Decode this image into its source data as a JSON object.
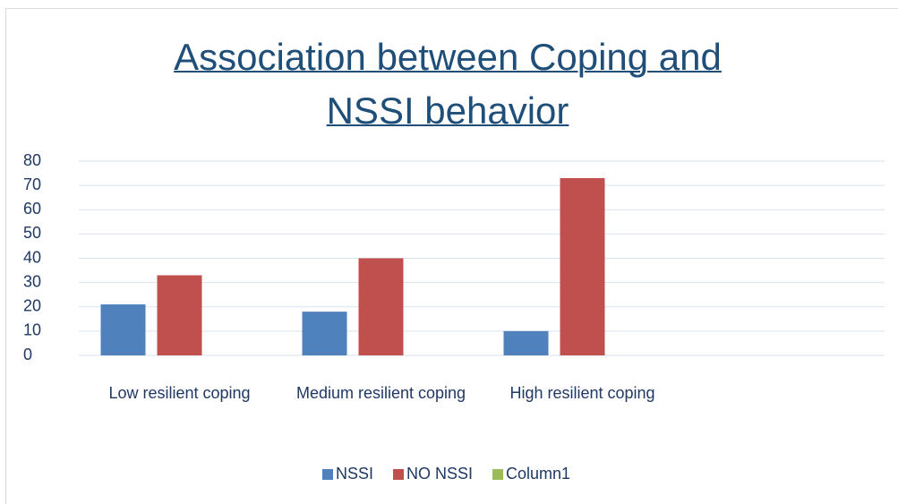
{
  "chart_data": {
    "type": "bar",
    "title": "Association between Coping and NSSI behavior",
    "categories": [
      "Low resilient coping",
      "Medium resilient coping",
      "High resilient coping",
      null
    ],
    "series": [
      {
        "name": "NSSI",
        "color": "#4f81bd",
        "values": [
          21,
          18,
          10,
          null
        ]
      },
      {
        "name": "NO NSSI",
        "color": "#c0504d",
        "values": [
          33,
          40,
          73,
          null
        ]
      },
      {
        "name": "Column1",
        "color": "#9bbb59",
        "values": [
          null,
          null,
          null,
          null
        ]
      }
    ],
    "ylim": [
      0,
      80
    ],
    "yticks": [
      0,
      10,
      20,
      30,
      40,
      50,
      60,
      70,
      80
    ],
    "grid": true,
    "legend": "bottom"
  }
}
